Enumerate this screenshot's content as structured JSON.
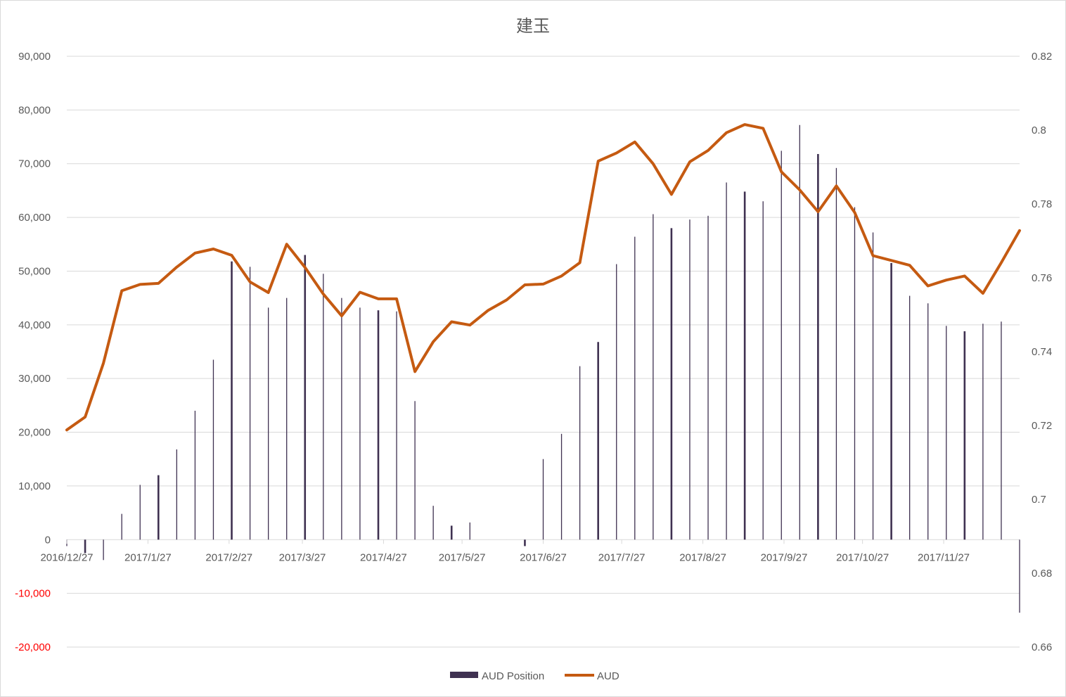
{
  "chart_data": {
    "type": "bar+line",
    "title": "建玉",
    "x": [
      "2016/12/27",
      "2017/1/3",
      "2017/1/10",
      "2017/1/17",
      "2017/1/24",
      "2017/1/31",
      "2017/2/7",
      "2017/2/14",
      "2017/2/21",
      "2017/2/28",
      "2017/3/7",
      "2017/3/14",
      "2017/3/21",
      "2017/3/28",
      "2017/4/4",
      "2017/4/11",
      "2017/4/18",
      "2017/4/25",
      "2017/5/2",
      "2017/5/9",
      "2017/5/16",
      "2017/5/23",
      "2017/5/30",
      "2017/6/6",
      "2017/6/13",
      "2017/6/20",
      "2017/6/27",
      "2017/7/4",
      "2017/7/11",
      "2017/7/18",
      "2017/7/25",
      "2017/8/1",
      "2017/8/8",
      "2017/8/15",
      "2017/8/22",
      "2017/8/29",
      "2017/9/5",
      "2017/9/12",
      "2017/9/19",
      "2017/9/26",
      "2017/10/3",
      "2017/10/10",
      "2017/10/17",
      "2017/10/24",
      "2017/10/31",
      "2017/11/7",
      "2017/11/14",
      "2017/11/21",
      "2017/11/28",
      "2017/12/5",
      "2017/12/12",
      "2017/12/19",
      "2017/12/26"
    ],
    "x_tick_labels": [
      "2016/12/27",
      "2017/1/27",
      "2017/2/27",
      "2017/3/27",
      "2017/4/27",
      "2017/5/27",
      "2017/6/27",
      "2017/7/27",
      "2017/8/27",
      "2017/9/27",
      "2017/10/27",
      "2017/11/27"
    ],
    "y_left": {
      "min": -20000,
      "max": 90000,
      "step": 10000,
      "tick_labels": [
        "-20,000",
        "-10,000",
        "0",
        "10,000",
        "20,000",
        "30,000",
        "40,000",
        "50,000",
        "60,000",
        "70,000",
        "80,000",
        "90,000"
      ]
    },
    "y_right": {
      "min": 0.66,
      "max": 0.82,
      "step": 0.02,
      "tick_labels": [
        "0.66",
        "0.68",
        "0.7",
        "0.72",
        "0.74",
        "0.76",
        "0.78",
        "0.8",
        "0.82"
      ]
    },
    "negative_tick_color": "#ff0000",
    "series": [
      {
        "name": "AUD Position",
        "type": "bar",
        "axis": "left",
        "color": "#3f3151",
        "values": [
          -1200,
          -2500,
          -3800,
          4800,
          10200,
          12000,
          16800,
          24000,
          33500,
          51800,
          50800,
          43200,
          45000,
          53000,
          49500,
          45000,
          43200,
          42700,
          42500,
          25800,
          6300,
          2600,
          3200,
          0,
          0,
          -1200,
          15000,
          19700,
          32300,
          36800,
          51300,
          56400,
          60600,
          58000,
          59600,
          60300,
          66500,
          64800,
          63000,
          72400,
          77200,
          71800,
          69200,
          61900,
          57200,
          51500,
          45400,
          44000,
          39800,
          38800,
          40200,
          40600,
          -13600
        ]
      },
      {
        "name": "AUD",
        "type": "line",
        "axis": "right",
        "color": "#c55a11",
        "values": [
          0.7188,
          0.7223,
          0.7369,
          0.7565,
          0.7582,
          0.7585,
          0.7629,
          0.7667,
          0.7678,
          0.7661,
          0.7589,
          0.756,
          0.7691,
          0.7628,
          0.7556,
          0.7497,
          0.7561,
          0.7543,
          0.7543,
          0.7346,
          0.7427,
          0.7481,
          0.7472,
          0.7512,
          0.754,
          0.7581,
          0.7583,
          0.7605,
          0.7641,
          0.7916,
          0.7938,
          0.7968,
          0.7909,
          0.7826,
          0.7914,
          0.7945,
          0.7993,
          0.8015,
          0.8005,
          0.7887,
          0.7838,
          0.7779,
          0.7849,
          0.7777,
          0.766,
          0.7647,
          0.7634,
          0.7578,
          0.7594,
          0.7605,
          0.7558,
          0.7641,
          0.7728
        ]
      }
    ],
    "legend": {
      "position": "bottom",
      "entries": [
        "AUD Position",
        "AUD"
      ]
    },
    "grid": true
  }
}
